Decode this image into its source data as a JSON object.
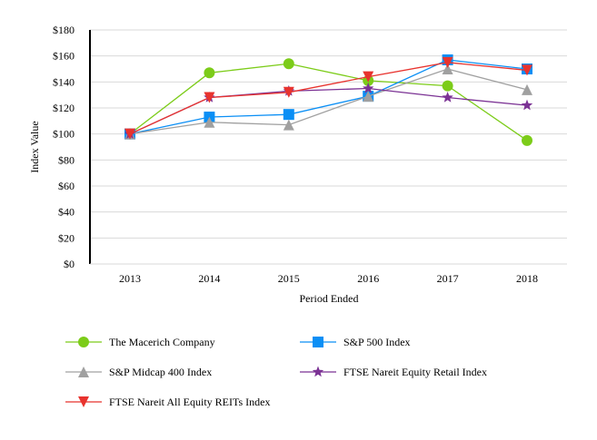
{
  "chart_data": {
    "type": "line",
    "xlabel": "Period Ended",
    "ylabel": "Index Value",
    "categories": [
      "2013",
      "2014",
      "2015",
      "2016",
      "2017",
      "2018"
    ],
    "ylim": [
      0,
      180
    ],
    "yticks": [
      0,
      20,
      40,
      60,
      80,
      100,
      120,
      140,
      160,
      180
    ],
    "ytick_labels": [
      "$0",
      "$20",
      "$40",
      "$60",
      "$80",
      "$100",
      "$120",
      "$140",
      "$160",
      "$180"
    ],
    "grid": true,
    "legend_position": "bottom",
    "series": [
      {
        "name": "The Macerich Company",
        "color": "#7ccc19",
        "marker": "circle",
        "values": [
          100,
          147,
          154,
          141,
          137,
          95
        ]
      },
      {
        "name": "S&P 500 Index",
        "color": "#0b8ff5",
        "marker": "square",
        "values": [
          100,
          113,
          115,
          129,
          157,
          150
        ]
      },
      {
        "name": "S&P Midcap 400 Index",
        "color": "#a0a0a0",
        "marker": "triangle-up",
        "values": [
          100,
          109,
          107,
          129,
          150,
          134
        ]
      },
      {
        "name": "FTSE Nareit Equity Retail Index",
        "color": "#7b3294",
        "marker": "star",
        "values": [
          100,
          128,
          133,
          135,
          128,
          122
        ]
      },
      {
        "name": "FTSE Nareit All Equity REITs Index",
        "color": "#e8332e",
        "marker": "triangle-down",
        "values": [
          100,
          128,
          132,
          144,
          155,
          149
        ]
      }
    ]
  }
}
